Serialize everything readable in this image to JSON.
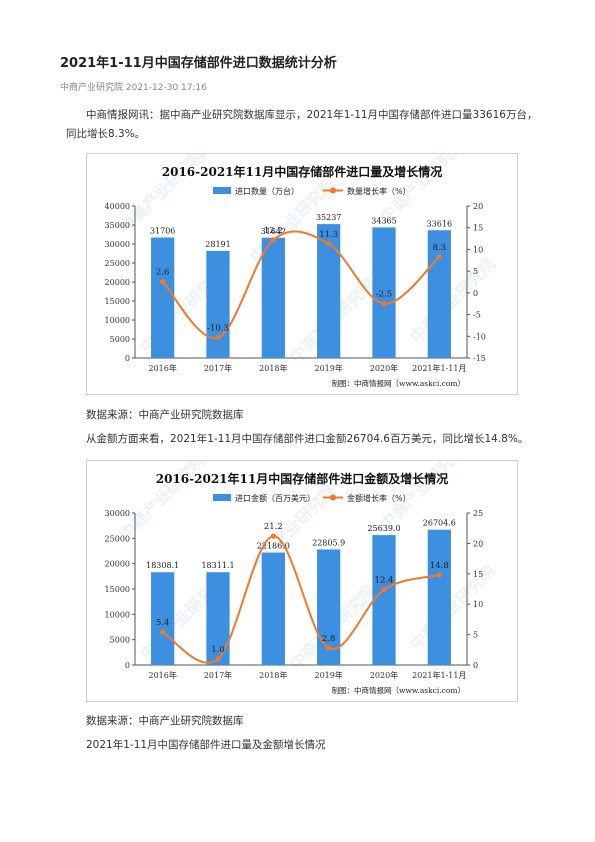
{
  "article": {
    "title": "2021年1-11月中国存储部件进口数据统计分析",
    "source_line": "中商产业研究院 2021-12-30 17:16",
    "intro": "中商情报网讯：据中商产业研究院数据库显示，2021年1-11月中国存储部件进口量33616万台，同比增长8.3%。",
    "source_note_1": "数据来源：中商产业研究院数据库",
    "amount_text": "从金额方面来看，2021年1-11月中国存储部件进口金额26704.6百万美元，同比增长14.8%。",
    "source_note_2": "数据来源：中商产业研究院数据库",
    "footer_caption": "2021年1-11月中国存储部件进口量及金额增长情况"
  },
  "watermark": {
    "text": "中商产业研究院"
  },
  "colors": {
    "bar": "#3d8fe0",
    "line": "#f07a2c",
    "axis": "#555555"
  },
  "chart_data": [
    {
      "type": "bar",
      "title": "2016-2021年11月中国存储部件进口量及增长情况",
      "categories": [
        "2016年",
        "2017年",
        "2018年",
        "2019年",
        "2020年",
        "2021年1-11月"
      ],
      "series": [
        {
          "name": "进口数量（万台）",
          "type": "bar",
          "axis": "left",
          "values": [
            31706,
            28191,
            31642,
            35237,
            34365,
            33616
          ],
          "labels": [
            "31706",
            "28191",
            "31642",
            "35237",
            "34365",
            "33616"
          ]
        },
        {
          "name": "数量增长率（%）",
          "type": "line",
          "axis": "right",
          "values": [
            2.6,
            -10.3,
            12.2,
            11.3,
            -2.5,
            8.3
          ],
          "labels": [
            "2.6",
            "-10.3",
            "12.2",
            "11.3",
            "-2.5",
            "8.3"
          ]
        }
      ],
      "ylim_left": [
        0,
        40000
      ],
      "yticks_left": [
        "0",
        "5000",
        "10000",
        "15000",
        "20000",
        "25000",
        "30000",
        "35000",
        "40000"
      ],
      "ylim_right": [
        -15,
        20
      ],
      "yticks_right": [
        "-15",
        "-10",
        "-5",
        "0",
        "5",
        "10",
        "15",
        "20"
      ],
      "credit": "制图：中商情报网（www.askci.com）",
      "legend": "top"
    },
    {
      "type": "bar",
      "title": "2016-2021年11月中国存储部件进口金额及增长情况",
      "categories": [
        "2016年",
        "2017年",
        "2018年",
        "2019年",
        "2020年",
        "2021年1-11月"
      ],
      "series": [
        {
          "name": "进口金额（百万美元）",
          "type": "bar",
          "axis": "left",
          "values": [
            18308.1,
            18311.1,
            22186.0,
            22805.9,
            25639.0,
            26704.6
          ],
          "labels": [
            "18308.1",
            "18311.1",
            "22186.0",
            "22805.9",
            "25639.0",
            "26704.6"
          ]
        },
        {
          "name": "金额增长率（%）",
          "type": "line",
          "axis": "right",
          "values": [
            5.4,
            1.0,
            21.2,
            2.8,
            12.4,
            14.8
          ],
          "labels": [
            "5.4",
            "1.0",
            "21.2",
            "2.8",
            "12.4",
            "14.8"
          ]
        }
      ],
      "ylim_left": [
        0,
        30000
      ],
      "yticks_left": [
        "0",
        "5000",
        "10000",
        "15000",
        "20000",
        "25000",
        "30000"
      ],
      "ylim_right": [
        0,
        25
      ],
      "yticks_right": [
        "0",
        "5",
        "10",
        "15",
        "20",
        "25"
      ],
      "credit": "制图：中商情报网（www.askci.com）",
      "legend": "top"
    }
  ]
}
